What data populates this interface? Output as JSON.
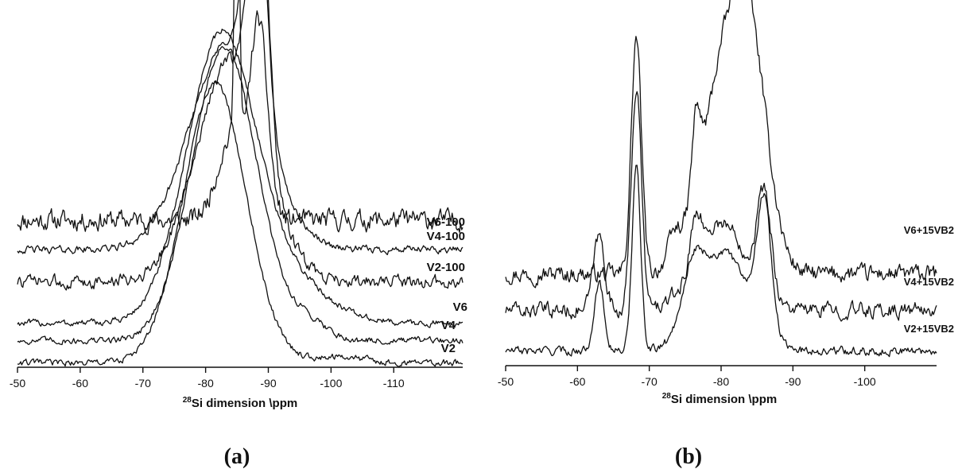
{
  "chart_data": [
    {
      "type": "line",
      "panel_label": "(a)",
      "xlabel": {
        "superscript": "28",
        "text": "Si dimension \\ppm"
      },
      "xlim": [
        -50,
        -121
      ],
      "x_ticks": [
        -50,
        -60,
        -70,
        -80,
        -90,
        -100,
        -110
      ],
      "grid": false,
      "series": [
        {
          "name": "V6-100",
          "baseline": 1.0,
          "noise": 0.055,
          "peaks": [
            {
              "pos": -85.0,
              "height": 2.45,
              "width": 0.35
            },
            {
              "pos": -88.5,
              "height": 1.3,
              "width": 1.4
            },
            {
              "pos": -84.0,
              "height": 0.55,
              "width": 2.2
            }
          ]
        },
        {
          "name": "V4-100",
          "baseline": 0.8,
          "noise": 0.02,
          "peaks": [
            {
              "pos": -88.0,
              "height": 1.9,
              "width": 1.5
            },
            {
              "pos": -83.5,
              "height": 1.4,
              "width": 6.0
            }
          ]
        },
        {
          "name": "V2-100",
          "baseline": 0.58,
          "noise": 0.035,
          "peaks": [
            {
              "pos": -88.5,
              "height": 2.0,
              "width": 1.4
            },
            {
              "pos": -84.0,
              "height": 1.5,
              "width": 5.5
            }
          ]
        },
        {
          "name": "V6",
          "baseline": 0.3,
          "noise": 0.018,
          "peaks": [
            {
              "pos": -82.5,
              "height": 1.95,
              "width": 5.5
            },
            {
              "pos": -94.0,
              "height": 0.25,
              "width": 6.0
            }
          ]
        },
        {
          "name": "V4",
          "baseline": 0.18,
          "noise": 0.018,
          "peaks": [
            {
              "pos": -83.0,
              "height": 2.0,
              "width": 5.2
            },
            {
              "pos": -96.5,
              "height": 0.12,
              "width": 3.0
            }
          ]
        },
        {
          "name": "V2",
          "baseline": 0.03,
          "noise": 0.018,
          "peaks": [
            {
              "pos": -81.5,
              "height": 1.9,
              "width": 5.0
            },
            {
              "pos": -101.0,
              "height": 0.04,
              "width": 4.0
            }
          ]
        }
      ]
    },
    {
      "type": "line",
      "panel_label": "(b)",
      "xlabel": {
        "superscript": "28",
        "text": "Si dimension \\ppm"
      },
      "xlim": [
        -50,
        -110
      ],
      "x_ticks": [
        -50,
        -60,
        -70,
        -80,
        -90,
        -100
      ],
      "grid": false,
      "series": [
        {
          "name": "V6+15VB2",
          "baseline": 0.65,
          "noise": 0.05,
          "peaks": [
            {
              "pos": -68.2,
              "height": 1.75,
              "width": 0.7
            },
            {
              "pos": -80.0,
              "height": 1.3,
              "width": 3.0
            },
            {
              "pos": -84.0,
              "height": 1.5,
              "width": 2.5
            },
            {
              "pos": -76.5,
              "height": 0.55,
              "width": 0.6
            },
            {
              "pos": -73.5,
              "height": 0.2,
              "width": 1.0
            }
          ]
        },
        {
          "name": "V4+15VB2",
          "baseline": 0.38,
          "noise": 0.045,
          "peaks": [
            {
              "pos": -68.2,
              "height": 1.65,
              "width": 0.7
            },
            {
              "pos": -63.0,
              "height": 0.55,
              "width": 0.8
            },
            {
              "pos": -86.0,
              "height": 0.75,
              "width": 1.0
            },
            {
              "pos": -80.0,
              "height": 0.65,
              "width": 3.5
            },
            {
              "pos": -76.5,
              "height": 0.35,
              "width": 0.7
            }
          ]
        },
        {
          "name": "V2+15VB2",
          "baseline": 0.08,
          "noise": 0.025,
          "peaks": [
            {
              "pos": -68.2,
              "height": 1.35,
              "width": 0.6
            },
            {
              "pos": -86.0,
              "height": 0.95,
              "width": 1.0
            },
            {
              "pos": -80.5,
              "height": 0.72,
              "width": 3.5
            },
            {
              "pos": -76.0,
              "height": 0.4,
              "width": 1.5
            },
            {
              "pos": -63.0,
              "height": 0.5,
              "width": 0.7
            }
          ]
        }
      ]
    }
  ]
}
